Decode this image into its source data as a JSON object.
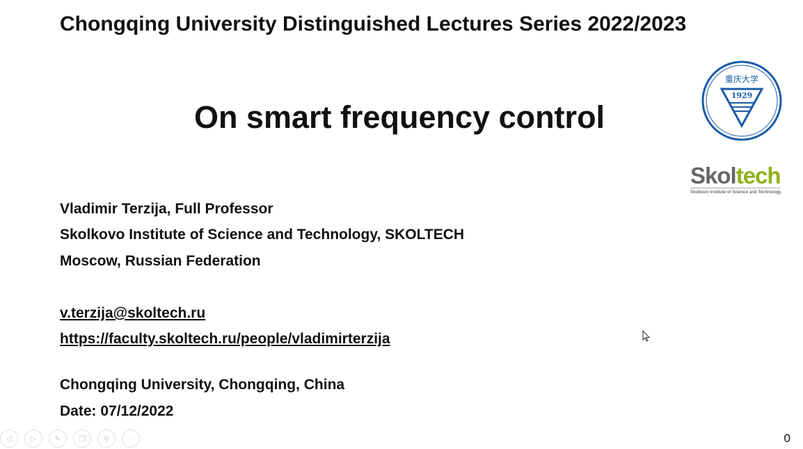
{
  "series": "Chongqing University Distinguished Lectures Series 2022/2023",
  "title": "On smart frequency control",
  "author": [
    "Vladimir Terzija, Full Professor",
    "Skolkovo Institute of Science and Technology, SKOLTECH",
    "Moscow, Russian Federation"
  ],
  "email": "v.terzija@skoltech.ru",
  "url": "https://faculty.skoltech.ru/people/vladimirterzija",
  "venue": "Chongqing University, Chongqing, China",
  "date": "Date: 07/12/2022",
  "logos": {
    "cqu_text": "CHONGQING UNIVERSITY",
    "cqu_year": "1929",
    "skoltech_a": "Skol",
    "skoltech_b": "tech",
    "skoltech_sub": "Skolkovo Institute of Science and Technology",
    "cqu_color": "#1a5ca8",
    "skol_grey": "#666666",
    "skol_green": "#8fb21a"
  },
  "controls": [
    "previous",
    "next",
    "pen",
    "pages",
    "zoom",
    "more"
  ],
  "page_number": "0"
}
